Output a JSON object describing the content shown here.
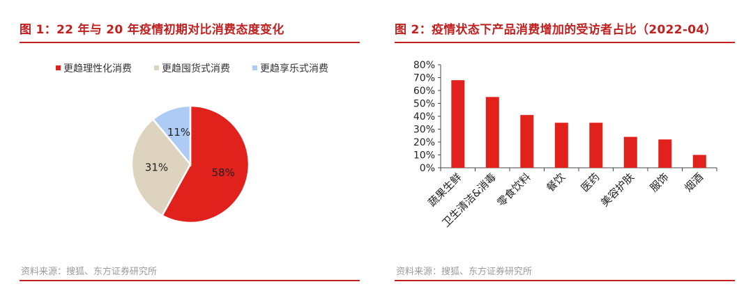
{
  "panels": {
    "left": {
      "title": "图 1：22 年与 20 年疫情初期对比消费态度变化",
      "source": "资料来源：搜狐、东方证券研究所"
    },
    "right": {
      "title": "图 2：疫情状态下产品消费增加的受访者占比（2022-04）",
      "source": "资料来源：搜狐、东方证券研究所"
    }
  },
  "colors": {
    "accent": "#c0201f",
    "bar": "#e0211c",
    "source_text": "#9a9a9a"
  },
  "chart_data": [
    {
      "type": "pie",
      "title": "图 1：22 年与 20 年疫情初期对比消费态度变化",
      "slices": [
        {
          "label": "更趋理性化消费",
          "value": 58,
          "value_label": "58%",
          "color": "#e0211c"
        },
        {
          "label": "更趋囤货式消费",
          "value": 31,
          "value_label": "31%",
          "color": "#ddd3bf"
        },
        {
          "label": "更趋享乐式消费",
          "value": 11,
          "value_label": "11%",
          "color": "#aecbf6"
        }
      ],
      "legend_position": "top"
    },
    {
      "type": "bar",
      "title": "图 2：疫情状态下产品消费增加的受访者占比（2022-04）",
      "categories": [
        "蔬果生鲜",
        "卫生清洁&消毒",
        "零食饮料",
        "餐饮",
        "医药",
        "美容护肤",
        "服饰",
        "烟酒"
      ],
      "values": [
        68,
        55,
        41,
        35,
        35,
        24,
        22,
        10
      ],
      "ylim": [
        0,
        80
      ],
      "yticks": [
        0,
        10,
        20,
        30,
        40,
        50,
        60,
        70,
        80
      ],
      "ytick_labels": [
        "0%",
        "10%",
        "20%",
        "30%",
        "40%",
        "50%",
        "60%",
        "70%",
        "80%"
      ],
      "grid": false,
      "xlabel": "",
      "ylabel": ""
    }
  ]
}
